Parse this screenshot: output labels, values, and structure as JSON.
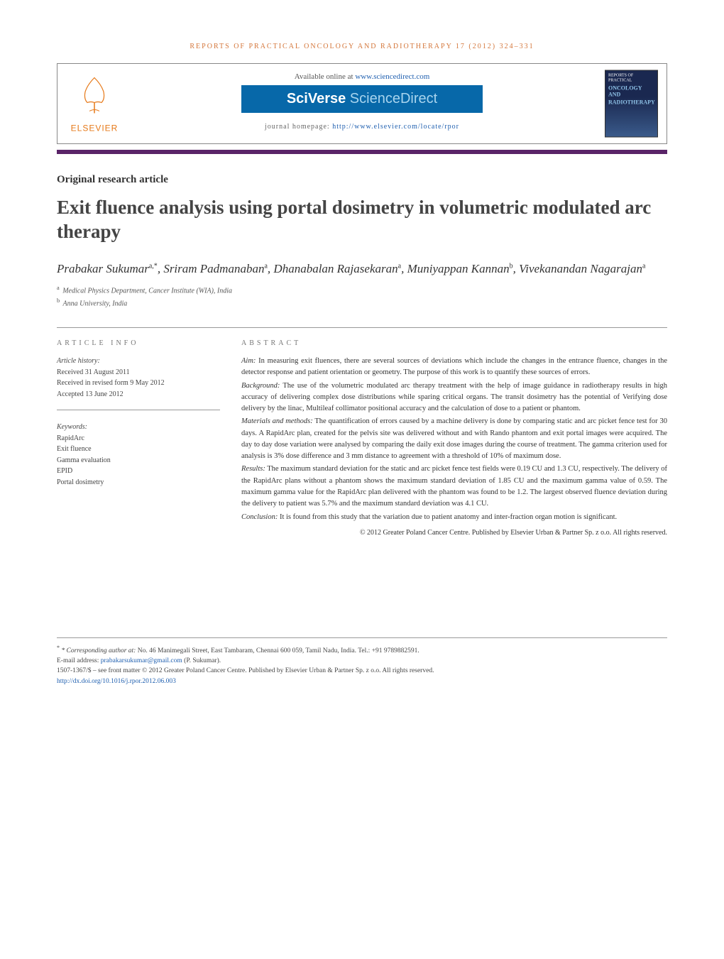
{
  "journal_ref": "REPORTS OF PRACTICAL ONCOLOGY AND RADIOTHERAPY 17 (2012) 324–331",
  "header": {
    "available_prefix": "Available online at ",
    "available_url": "www.sciencedirect.com",
    "sciverse": "SciVerse",
    "sciencedirect": " ScienceDirect",
    "homepage_prefix": "journal homepage: ",
    "homepage_url": "http://www.elsevier.com/locate/rpor",
    "elsevier": "ELSEVIER",
    "cover_top": "REPORTS OF PRACTICAL",
    "cover_title1": "ONCOLOGY AND",
    "cover_title2": "RADIOTHERAPY"
  },
  "article_type": "Original research article",
  "title": "Exit fluence analysis using portal dosimetry in volumetric modulated arc therapy",
  "authors_html": "Prabakar Sukumar",
  "authors": [
    {
      "name": "Prabakar Sukumar",
      "sup": "a,*"
    },
    {
      "name": "Sriram Padmanaban",
      "sup": "a"
    },
    {
      "name": "Dhanabalan Rajasekaran",
      "sup": "a"
    },
    {
      "name": "Muniyappan Kannan",
      "sup": "b"
    },
    {
      "name": "Vivekanandan Nagarajan",
      "sup": "a"
    }
  ],
  "affiliations": [
    {
      "sup": "a",
      "text": "Medical Physics Department, Cancer Institute (WIA), India"
    },
    {
      "sup": "b",
      "text": "Anna University, India"
    }
  ],
  "article_info": {
    "label": "ARTICLE INFO",
    "history_label": "Article history:",
    "received": "Received 31 August 2011",
    "revised": "Received in revised form 9 May 2012",
    "accepted": "Accepted 13 June 2012",
    "keywords_label": "Keywords:",
    "keywords": [
      "RapidArc",
      "Exit fluence",
      "Gamma evaluation",
      "EPID",
      "Portal dosimetry"
    ]
  },
  "abstract": {
    "label": "ABSTRACT",
    "sections": [
      {
        "heading": "Aim:",
        "text": "In measuring exit fluences, there are several sources of deviations which include the changes in the entrance fluence, changes in the detector response and patient orientation or geometry. The purpose of this work is to quantify these sources of errors."
      },
      {
        "heading": "Background:",
        "text": "The use of the volumetric modulated arc therapy treatment with the help of image guidance in radiotherapy results in high accuracy of delivering complex dose distributions while sparing critical organs. The transit dosimetry has the potential of Verifying dose delivery by the linac, Multileaf collimator positional accuracy and the calculation of dose to a patient or phantom."
      },
      {
        "heading": "Materials and methods:",
        "text": "The quantification of errors caused by a machine delivery is done by comparing static and arc picket fence test for 30 days. A RapidArc plan, created for the pelvis site was delivered without and with Rando phantom and exit portal images were acquired. The day to day dose variation were analysed by comparing the daily exit dose images during the course of treatment. The gamma criterion used for analysis is 3% dose difference and 3 mm distance to agreement with a threshold of 10% of maximum dose."
      },
      {
        "heading": "Results:",
        "text": "The maximum standard deviation for the static and arc picket fence test fields were 0.19 CU and 1.3 CU, respectively. The delivery of the RapidArc plans without a phantom shows the maximum standard deviation of 1.85 CU and the maximum gamma value of 0.59. The maximum gamma value for the RapidArc plan delivered with the phantom was found to be 1.2. The largest observed fluence deviation during the delivery to patient was 5.7% and the maximum standard deviation was 4.1 CU."
      },
      {
        "heading": "Conclusion:",
        "text": "It is found from this study that the variation due to patient anatomy and inter-fraction organ motion is significant."
      }
    ],
    "copyright": "© 2012 Greater Poland Cancer Centre. Published by Elsevier Urban & Partner Sp. z o.o. All rights reserved."
  },
  "footer": {
    "corr_label": "* Corresponding author at:",
    "corr_text": " No. 46 Manimegali Street, East Tambaram, Chennai 600 059, Tamil Nadu, India. Tel.: +91 9789882591.",
    "email_label": "E-mail address: ",
    "email": "prabakarsukumar@gmail.com",
    "email_suffix": " (P. Sukumar).",
    "issn_line": "1507-1367/$ – see front matter © 2012 Greater Poland Cancer Centre. Published by Elsevier Urban & Partner Sp. z o.o. All rights reserved.",
    "doi": "http://dx.doi.org/10.1016/j.rpor.2012.06.003"
  },
  "colors": {
    "purple_bar": "#5a2468",
    "orange": "#d4763a",
    "link": "#2060b0",
    "elsevier_orange": "#e67817",
    "sciverse_bg": "#0768a9"
  }
}
